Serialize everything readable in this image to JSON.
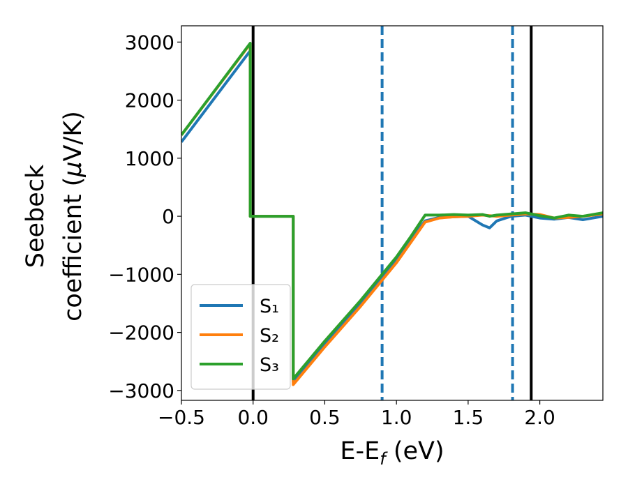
{
  "chart_data": {
    "type": "line",
    "x_label": [
      "E-E",
      "f",
      " (eV)"
    ],
    "y_label": [
      "Seebeck",
      "coefficient  (",
      "μ",
      "V/K)"
    ],
    "x": [
      -0.5,
      -0.02,
      -0.02,
      0.28,
      0.28,
      0.5,
      0.75,
      1.0,
      1.1,
      1.2,
      1.3,
      1.4,
      1.5,
      1.6,
      1.65,
      1.7,
      1.8,
      1.9,
      2.0,
      2.1,
      2.2,
      2.3,
      2.44
    ],
    "series": [
      {
        "name": "S₁",
        "color": "#1f77b4",
        "values": [
          1280,
          2850,
          0,
          0,
          -2850,
          -2200,
          -1500,
          -750,
          -400,
          -80,
          -20,
          -10,
          0,
          -150,
          -200,
          -80,
          0,
          20,
          -30,
          -50,
          -20,
          -60,
          0
        ]
      },
      {
        "name": "S₂",
        "color": "#ff7f0e",
        "values": [
          1400,
          2970,
          0,
          0,
          -2900,
          -2250,
          -1550,
          -800,
          -450,
          -100,
          -30,
          -10,
          0,
          20,
          10,
          0,
          20,
          40,
          30,
          -30,
          -20,
          0,
          40
        ]
      },
      {
        "name": "S₃",
        "color": "#2ca02c",
        "values": [
          1400,
          2980,
          0,
          0,
          -2800,
          -2150,
          -1450,
          -700,
          -350,
          20,
          20,
          30,
          20,
          30,
          0,
          20,
          40,
          60,
          10,
          -30,
          20,
          0,
          60
        ]
      }
    ],
    "vlines": [
      {
        "x": 0,
        "color": "#000000",
        "style": "solid"
      },
      {
        "x": 0.9,
        "color": "#1f77b4",
        "style": "dashed"
      },
      {
        "x": 1.81,
        "color": "#1f77b4",
        "style": "dashed"
      },
      {
        "x": 1.94,
        "color": "#000000",
        "style": "solid"
      }
    ],
    "xlim": [
      -0.5,
      2.44
    ],
    "ylim": [
      -3170,
      3280
    ],
    "xticks": [
      {
        "value": -0.5,
        "label": "−0.5"
      },
      {
        "value": 0,
        "label": "0.0"
      },
      0.5,
      {
        "value": 1,
        "label": "1.0"
      },
      1.5,
      {
        "value": 2,
        "label": "2.0"
      }
    ],
    "yticks": [
      {
        "value": -3000,
        "label": "−3000"
      },
      {
        "value": -2000,
        "label": "−2000"
      },
      {
        "value": -1000,
        "label": "−1000"
      },
      0,
      1000,
      2000,
      3000
    ],
    "grid": false,
    "legend": "lower left"
  }
}
